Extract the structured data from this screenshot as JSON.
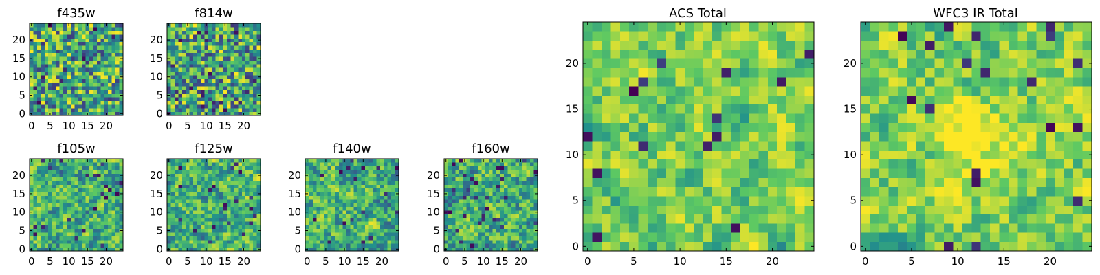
{
  "chart_data": [
    {
      "id": "f435w",
      "type": "heatmap",
      "title": "f435w",
      "grid_size": 25,
      "xlim": [
        -0.5,
        24.5
      ],
      "ylim": [
        -0.5,
        24.5
      ],
      "xticks": [
        0,
        5,
        10,
        15,
        20
      ],
      "yticks": [
        0,
        5,
        10,
        15,
        20
      ],
      "colormap": "viridis",
      "pattern": "fine-noise",
      "seed": 11
    },
    {
      "id": "f814w",
      "type": "heatmap",
      "title": "f814w",
      "grid_size": 25,
      "xlim": [
        -0.5,
        24.5
      ],
      "ylim": [
        -0.5,
        24.5
      ],
      "xticks": [
        0,
        5,
        10,
        15,
        20
      ],
      "yticks": [
        0,
        5,
        10,
        15,
        20
      ],
      "colormap": "viridis",
      "pattern": "fine-noise",
      "seed": 23
    },
    {
      "id": "f105w",
      "type": "heatmap",
      "title": "f105w",
      "grid_size": 25,
      "xlim": [
        -0.5,
        24.5
      ],
      "ylim": [
        -0.5,
        24.5
      ],
      "xticks": [
        0,
        5,
        10,
        15,
        20
      ],
      "yticks": [
        0,
        5,
        10,
        15,
        20
      ],
      "colormap": "viridis",
      "pattern": "smooth-noise",
      "seed": 37
    },
    {
      "id": "f125w",
      "type": "heatmap",
      "title": "f125w",
      "grid_size": 25,
      "xlim": [
        -0.5,
        24.5
      ],
      "ylim": [
        -0.5,
        24.5
      ],
      "xticks": [
        0,
        5,
        10,
        15,
        20
      ],
      "yticks": [
        0,
        5,
        10,
        15,
        20
      ],
      "colormap": "viridis",
      "pattern": "smooth-noise",
      "seed": 41
    },
    {
      "id": "f140w",
      "type": "heatmap",
      "title": "f140w",
      "grid_size": 25,
      "xlim": [
        -0.5,
        24.5
      ],
      "ylim": [
        -0.5,
        24.5
      ],
      "xticks": [
        0,
        5,
        10,
        15,
        20
      ],
      "yticks": [
        0,
        5,
        10,
        15,
        20
      ],
      "colormap": "viridis",
      "pattern": "smooth-noise",
      "seed": 53
    },
    {
      "id": "f160w",
      "type": "heatmap",
      "title": "f160w",
      "grid_size": 25,
      "xlim": [
        -0.5,
        24.5
      ],
      "ylim": [
        -0.5,
        24.5
      ],
      "xticks": [
        0,
        5,
        10,
        15,
        20
      ],
      "yticks": [
        0,
        5,
        10,
        15,
        20
      ],
      "colormap": "viridis",
      "pattern": "smooth-noise",
      "seed": 67
    },
    {
      "id": "acs-total",
      "type": "heatmap",
      "title": "ACS Total",
      "grid_size": 25,
      "xlim": [
        -0.5,
        24.5
      ],
      "ylim": [
        -0.5,
        24.5
      ],
      "xticks": [
        0,
        5,
        10,
        15,
        20
      ],
      "yticks": [
        0,
        5,
        10,
        15,
        20
      ],
      "colormap": "viridis",
      "pattern": "bright-noise",
      "seed": 79
    },
    {
      "id": "wfc3-ir-total",
      "type": "heatmap",
      "title": "WFC3 IR Total",
      "grid_size": 25,
      "xlim": [
        -0.5,
        24.5
      ],
      "ylim": [
        -0.5,
        24.5
      ],
      "xticks": [
        0,
        5,
        10,
        15,
        20
      ],
      "yticks": [
        0,
        5,
        10,
        15,
        20
      ],
      "colormap": "viridis",
      "pattern": "bright-noise-central-peak",
      "seed": 97
    }
  ],
  "colors": {
    "background": "#ffffff",
    "frame": "#000000",
    "viridis": [
      "#440154",
      "#3b528b",
      "#21918c",
      "#5ec962",
      "#fde725"
    ]
  }
}
